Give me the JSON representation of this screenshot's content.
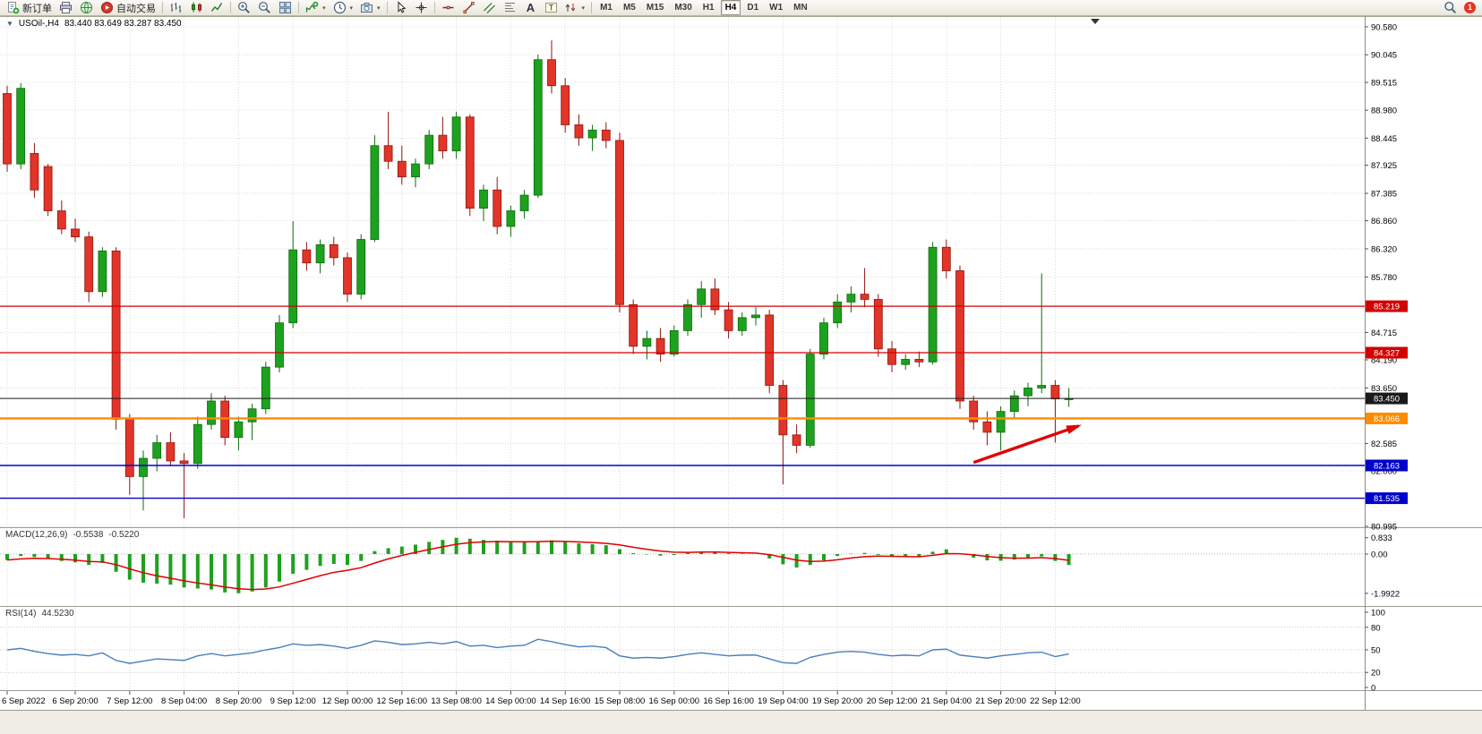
{
  "toolbar": {
    "new_order_label": "新订单",
    "auto_trading_label": "自动交易",
    "timeframes": [
      "M1",
      "M5",
      "M15",
      "M30",
      "H1",
      "H4",
      "D1",
      "W1",
      "MN"
    ],
    "active_timeframe": "H4",
    "notification_count": "1",
    "icon_buttons": [
      "new-order",
      "print",
      "mql5-community",
      "auto-trading",
      "bar-chart",
      "candlestick-chart",
      "line-chart",
      "zoom-in",
      "zoom-out",
      "tile-windows",
      "new-chart",
      "periods",
      "camera",
      "cursor",
      "crosshair",
      "horizontal-line",
      "trendline",
      "equidistant-channel",
      "fibonacci",
      "text",
      "text-label",
      "arrows",
      "search"
    ]
  },
  "chart": {
    "symbol_period": "USOil-,H4",
    "ohlc": "83.440 83.649 83.287 83.450",
    "background": "#ffffff",
    "up_color": "#1ea11e",
    "down_color": "#e23428"
  },
  "price_axis": {
    "labels": [
      "90.580",
      "90.045",
      "89.515",
      "88.980",
      "88.445",
      "87.925",
      "87.385",
      "86.860",
      "86.320",
      "85.780",
      "84.715",
      "84.190",
      "83.650",
      "82.585",
      "82.060",
      "80.995"
    ],
    "badges": [
      {
        "value": "85.219",
        "color": "#d20000"
      },
      {
        "value": "84.327",
        "color": "#d20000"
      },
      {
        "value": "83.450",
        "color": "#1a1a1a"
      },
      {
        "value": "83.066",
        "color": "#ff8c00"
      },
      {
        "value": "82.163",
        "color": "#0000cc"
      },
      {
        "value": "81.535",
        "color": "#0000cc"
      }
    ]
  },
  "time_axis": [
    "6 Sep 2022",
    "6 Sep 20:00",
    "7 Sep 12:00",
    "8 Sep 04:00",
    "8 Sep 20:00",
    "9 Sep 12:00",
    "12 Sep 00:00",
    "12 Sep 16:00",
    "13 Sep 08:00",
    "14 Sep 00:00",
    "14 Sep 16:00",
    "15 Sep 08:00",
    "16 Sep 00:00",
    "16 Sep 16:00",
    "19 Sep 04:00",
    "19 Sep 20:00",
    "20 Sep 12:00",
    "21 Sep 04:00",
    "21 Sep 20:00",
    "22 Sep 12:00"
  ],
  "chart_data": {
    "type": "candlestick",
    "symbol": "USOil",
    "period": "H4",
    "ylim": [
      80.995,
      90.58
    ],
    "time_label_indices": [
      0,
      5,
      9,
      13,
      17,
      21,
      25,
      29,
      33,
      37,
      41,
      45,
      49,
      53,
      57,
      61,
      65,
      69,
      73,
      77
    ],
    "candles": [
      [
        89.3,
        89.45,
        87.8,
        87.95
      ],
      [
        87.95,
        89.5,
        87.85,
        89.4
      ],
      [
        88.15,
        88.35,
        87.3,
        87.45
      ],
      [
        87.9,
        87.95,
        86.95,
        87.05
      ],
      [
        87.05,
        87.25,
        86.6,
        86.7
      ],
      [
        86.7,
        86.9,
        86.45,
        86.55
      ],
      [
        86.55,
        86.65,
        85.3,
        85.5
      ],
      [
        85.5,
        86.35,
        85.4,
        86.28
      ],
      [
        86.28,
        86.35,
        82.85,
        83.05
      ],
      [
        83.05,
        83.15,
        81.6,
        81.95
      ],
      [
        81.95,
        82.45,
        81.3,
        82.3
      ],
      [
        82.3,
        82.75,
        82.05,
        82.6
      ],
      [
        82.6,
        82.8,
        82.15,
        82.25
      ],
      [
        82.25,
        82.4,
        81.15,
        82.2
      ],
      [
        82.2,
        83.1,
        82.1,
        82.95
      ],
      [
        82.95,
        83.55,
        82.85,
        83.4
      ],
      [
        83.4,
        83.5,
        82.55,
        82.7
      ],
      [
        82.7,
        83.1,
        82.45,
        83.0
      ],
      [
        83.0,
        83.35,
        82.65,
        83.25
      ],
      [
        83.25,
        84.15,
        83.15,
        84.05
      ],
      [
        84.05,
        85.05,
        83.95,
        84.9
      ],
      [
        84.9,
        86.85,
        84.8,
        86.3
      ],
      [
        86.3,
        86.45,
        85.9,
        86.05
      ],
      [
        86.05,
        86.5,
        85.85,
        86.4
      ],
      [
        86.4,
        86.55,
        86.0,
        86.15
      ],
      [
        86.15,
        86.25,
        85.3,
        85.45
      ],
      [
        85.45,
        86.6,
        85.35,
        86.5
      ],
      [
        86.5,
        88.5,
        86.45,
        88.3
      ],
      [
        88.3,
        88.95,
        87.85,
        88.0
      ],
      [
        88.0,
        88.3,
        87.55,
        87.7
      ],
      [
        87.7,
        88.05,
        87.5,
        87.95
      ],
      [
        87.95,
        88.6,
        87.85,
        88.5
      ],
      [
        88.5,
        88.85,
        88.05,
        88.2
      ],
      [
        88.2,
        88.95,
        88.05,
        88.85
      ],
      [
        88.85,
        88.9,
        86.95,
        87.1
      ],
      [
        87.1,
        87.55,
        86.85,
        87.45
      ],
      [
        87.45,
        87.7,
        86.6,
        86.75
      ],
      [
        86.75,
        87.15,
        86.55,
        87.05
      ],
      [
        87.05,
        87.45,
        86.9,
        87.35
      ],
      [
        87.35,
        90.05,
        87.3,
        89.95
      ],
      [
        89.95,
        90.32,
        89.3,
        89.45
      ],
      [
        89.45,
        89.6,
        88.55,
        88.7
      ],
      [
        88.7,
        88.9,
        88.3,
        88.45
      ],
      [
        88.45,
        88.7,
        88.2,
        88.6
      ],
      [
        88.6,
        88.75,
        88.25,
        88.4
      ],
      [
        88.4,
        88.55,
        85.1,
        85.25
      ],
      [
        85.25,
        85.35,
        84.3,
        84.45
      ],
      [
        84.45,
        84.75,
        84.2,
        84.6
      ],
      [
        84.6,
        84.8,
        84.15,
        84.3
      ],
      [
        84.3,
        84.85,
        84.25,
        84.75
      ],
      [
        84.75,
        85.35,
        84.65,
        85.25
      ],
      [
        85.25,
        85.7,
        85.0,
        85.55
      ],
      [
        85.55,
        85.75,
        85.05,
        85.15
      ],
      [
        85.15,
        85.3,
        84.6,
        84.75
      ],
      [
        84.75,
        85.1,
        84.65,
        85.0
      ],
      [
        85.0,
        85.2,
        84.85,
        85.05
      ],
      [
        85.05,
        85.15,
        83.55,
        83.7
      ],
      [
        83.7,
        83.8,
        81.8,
        82.75
      ],
      [
        82.75,
        82.95,
        82.4,
        82.55
      ],
      [
        82.55,
        84.4,
        82.5,
        84.3
      ],
      [
        84.3,
        85.0,
        84.2,
        84.9
      ],
      [
        84.9,
        85.45,
        84.8,
        85.3
      ],
      [
        85.3,
        85.6,
        85.1,
        85.45
      ],
      [
        85.45,
        85.95,
        85.2,
        85.35
      ],
      [
        85.35,
        85.45,
        84.25,
        84.4
      ],
      [
        84.4,
        84.55,
        83.95,
        84.1
      ],
      [
        84.1,
        84.3,
        84.0,
        84.2
      ],
      [
        84.2,
        84.35,
        84.05,
        84.15
      ],
      [
        84.15,
        86.45,
        84.1,
        86.35
      ],
      [
        86.35,
        86.5,
        85.75,
        85.9
      ],
      [
        85.9,
        86.0,
        83.25,
        83.4
      ],
      [
        83.4,
        83.5,
        82.85,
        83.0
      ],
      [
        83.0,
        83.2,
        82.55,
        82.8
      ],
      [
        82.8,
        83.3,
        82.45,
        83.2
      ],
      [
        83.2,
        83.6,
        83.05,
        83.5
      ],
      [
        83.5,
        83.75,
        83.3,
        83.65
      ],
      [
        83.65,
        85.85,
        83.55,
        83.7
      ],
      [
        83.7,
        83.8,
        82.6,
        83.44
      ],
      [
        83.44,
        83.649,
        83.287,
        83.45
      ]
    ],
    "horizontal_lines": [
      {
        "price": 85.219,
        "color": "#d20000",
        "width": 1.2
      },
      {
        "price": 84.327,
        "color": "#d20000",
        "width": 1.2
      },
      {
        "price": 83.45,
        "color": "#1a1a1a",
        "width": 1
      },
      {
        "price": 83.066,
        "color": "#ff8c00",
        "width": 2.4
      },
      {
        "price": 82.163,
        "color": "#0000cc",
        "width": 1.4
      },
      {
        "price": 81.535,
        "color": "#0000cc",
        "width": 1.4
      }
    ],
    "arrow_annotation": {
      "from_index": 71,
      "from_price": 82.22,
      "to_index": 78.7,
      "to_price": 82.92,
      "color": "#e00000"
    }
  },
  "macd": {
    "label": "MACD(12,26,9)",
    "value_macd": "-0.5538",
    "value_signal": "-0.5220",
    "axis_labels": [
      "0.833",
      "0.00",
      "-1.9922"
    ],
    "axis_values": [
      0.833,
      0,
      -1.9922
    ],
    "histogram_color": "#1ea11e",
    "signal_color": "#e00000",
    "histogram": [
      -0.3,
      -0.1,
      -0.15,
      -0.25,
      -0.35,
      -0.42,
      -0.55,
      -0.45,
      -0.9,
      -1.3,
      -1.45,
      -1.5,
      -1.55,
      -1.7,
      -1.75,
      -1.8,
      -1.95,
      -1.99,
      -1.9,
      -1.7,
      -1.4,
      -1.0,
      -0.8,
      -0.6,
      -0.5,
      -0.55,
      -0.35,
      0.15,
      0.3,
      0.38,
      0.48,
      0.62,
      0.72,
      0.83,
      0.78,
      0.72,
      0.68,
      0.62,
      0.6,
      0.66,
      0.7,
      0.62,
      0.55,
      0.5,
      0.45,
      0.25,
      0.05,
      -0.02,
      -0.08,
      -0.05,
      0.06,
      0.14,
      0.12,
      0.04,
      0.02,
      0.0,
      -0.22,
      -0.52,
      -0.68,
      -0.55,
      -0.32,
      -0.1,
      0.02,
      0.06,
      -0.04,
      -0.14,
      -0.16,
      -0.16,
      0.12,
      0.24,
      0.0,
      -0.18,
      -0.32,
      -0.34,
      -0.28,
      -0.2,
      -0.12,
      -0.35,
      -0.5538
    ]
  },
  "rsi": {
    "label": "RSI(14)",
    "value": "44.5230",
    "axis_labels": [
      "100",
      "80",
      "50",
      "20",
      "0"
    ],
    "axis_values": [
      100,
      80,
      50,
      20,
      0
    ],
    "levels": [
      80,
      50,
      20
    ],
    "line_color": "#4a7ebb",
    "values": [
      50,
      52,
      48,
      45,
      43,
      44,
      42,
      46,
      36,
      32,
      35,
      38,
      37,
      36,
      42,
      45,
      42,
      44,
      46,
      50,
      53,
      58,
      56,
      57,
      55,
      52,
      56,
      62,
      60,
      57,
      58,
      60,
      58,
      61,
      55,
      56,
      53,
      55,
      56,
      64,
      61,
      57,
      54,
      55,
      53,
      42,
      39,
      40,
      39,
      41,
      44,
      46,
      44,
      42,
      43,
      43,
      38,
      33,
      32,
      40,
      44,
      47,
      48,
      47,
      44,
      42,
      43,
      42,
      50,
      51,
      43,
      41,
      39,
      42,
      44,
      46,
      47,
      41,
      44.52
    ]
  }
}
